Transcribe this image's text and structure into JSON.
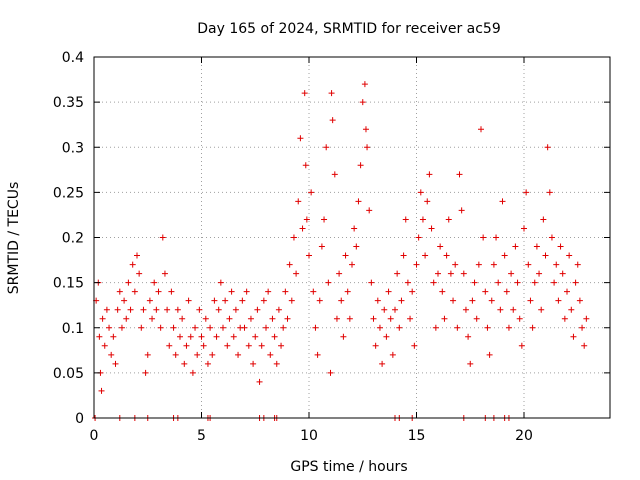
{
  "chart_data": {
    "type": "scatter",
    "title": "Day 165 of 2024, SRMTID for receiver ac59",
    "xlabel": "GPS time / hours",
    "ylabel": "SRMTID / TECUs",
    "xlim": [
      0,
      24
    ],
    "ylim": [
      0,
      0.4
    ],
    "x_ticks": [
      0,
      5,
      10,
      15,
      20
    ],
    "x_tick_labels": [
      "0",
      "5",
      "10",
      "15",
      "20"
    ],
    "y_ticks": [
      0,
      0.05,
      0.1,
      0.15,
      0.2,
      0.25,
      0.3,
      0.35,
      0.4
    ],
    "y_tick_labels": [
      "0",
      "0.05",
      "0.1",
      "0.15",
      "0.2",
      "0.25",
      "0.3",
      "0.35",
      "0.4"
    ],
    "grid": true,
    "marker": "+",
    "series_color": "#e00000",
    "series": [
      {
        "name": "SRMTID",
        "points": [
          [
            0.1,
            0.13
          ],
          [
            0.2,
            0.15
          ],
          [
            0.25,
            0.09
          ],
          [
            0.3,
            0.05
          ],
          [
            0.35,
            0.03
          ],
          [
            0.4,
            0.11
          ],
          [
            0.5,
            0.08
          ],
          [
            0.6,
            0.12
          ],
          [
            0.7,
            0.1
          ],
          [
            0.8,
            0.07
          ],
          [
            0.9,
            0.09
          ],
          [
            1.0,
            0.06
          ],
          [
            1.1,
            0.12
          ],
          [
            1.2,
            0.14
          ],
          [
            1.3,
            0.1
          ],
          [
            1.4,
            0.13
          ],
          [
            1.5,
            0.11
          ],
          [
            1.6,
            0.15
          ],
          [
            1.7,
            0.12
          ],
          [
            1.8,
            0.17
          ],
          [
            1.9,
            0.14
          ],
          [
            2.0,
            0.18
          ],
          [
            2.1,
            0.16
          ],
          [
            2.2,
            0.1
          ],
          [
            2.3,
            0.12
          ],
          [
            2.4,
            0.05
          ],
          [
            2.5,
            0.07
          ],
          [
            2.6,
            0.13
          ],
          [
            2.7,
            0.11
          ],
          [
            2.8,
            0.15
          ],
          [
            2.9,
            0.12
          ],
          [
            3.0,
            0.14
          ],
          [
            3.1,
            0.1
          ],
          [
            3.2,
            0.2
          ],
          [
            3.3,
            0.16
          ],
          [
            3.4,
            0.12
          ],
          [
            3.5,
            0.08
          ],
          [
            3.6,
            0.14
          ],
          [
            3.7,
            0.1
          ],
          [
            3.8,
            0.07
          ],
          [
            3.9,
            0.12
          ],
          [
            4.0,
            0.09
          ],
          [
            4.1,
            0.11
          ],
          [
            4.2,
            0.06
          ],
          [
            4.3,
            0.08
          ],
          [
            4.4,
            0.13
          ],
          [
            4.5,
            0.09
          ],
          [
            4.6,
            0.05
          ],
          [
            4.7,
            0.1
          ],
          [
            4.8,
            0.07
          ],
          [
            4.9,
            0.12
          ],
          [
            5.0,
            0.09
          ],
          [
            5.1,
            0.08
          ],
          [
            5.2,
            0.11
          ],
          [
            5.3,
            0.06
          ],
          [
            5.4,
            0.1
          ],
          [
            5.5,
            0.07
          ],
          [
            5.6,
            0.13
          ],
          [
            5.7,
            0.09
          ],
          [
            5.8,
            0.12
          ],
          [
            5.9,
            0.15
          ],
          [
            6.0,
            0.1
          ],
          [
            6.1,
            0.13
          ],
          [
            6.2,
            0.08
          ],
          [
            6.3,
            0.11
          ],
          [
            6.4,
            0.14
          ],
          [
            6.5,
            0.09
          ],
          [
            6.6,
            0.12
          ],
          [
            6.7,
            0.07
          ],
          [
            6.8,
            0.1
          ],
          [
            6.9,
            0.13
          ],
          [
            7.0,
            0.1
          ],
          [
            7.1,
            0.14
          ],
          [
            7.2,
            0.08
          ],
          [
            7.3,
            0.11
          ],
          [
            7.4,
            0.06
          ],
          [
            7.5,
            0.09
          ],
          [
            7.6,
            0.12
          ],
          [
            7.7,
            0.04
          ],
          [
            7.8,
            0.08
          ],
          [
            7.9,
            0.13
          ],
          [
            8.0,
            0.1
          ],
          [
            8.1,
            0.14
          ],
          [
            8.2,
            0.07
          ],
          [
            8.3,
            0.11
          ],
          [
            8.4,
            0.09
          ],
          [
            8.5,
            0.06
          ],
          [
            8.6,
            0.12
          ],
          [
            8.7,
            0.08
          ],
          [
            8.8,
            0.1
          ],
          [
            8.9,
            0.14
          ],
          [
            9.0,
            0.11
          ],
          [
            9.1,
            0.17
          ],
          [
            9.2,
            0.13
          ],
          [
            9.3,
            0.2
          ],
          [
            9.4,
            0.16
          ],
          [
            9.5,
            0.24
          ],
          [
            9.6,
            0.31
          ],
          [
            9.7,
            0.21
          ],
          [
            9.8,
            0.36
          ],
          [
            9.85,
            0.28
          ],
          [
            9.9,
            0.22
          ],
          [
            10.0,
            0.18
          ],
          [
            10.1,
            0.25
          ],
          [
            10.2,
            0.14
          ],
          [
            10.3,
            0.1
          ],
          [
            10.4,
            0.07
          ],
          [
            10.5,
            0.13
          ],
          [
            10.6,
            0.19
          ],
          [
            10.7,
            0.22
          ],
          [
            10.8,
            0.3
          ],
          [
            10.9,
            0.15
          ],
          [
            11.0,
            0.05
          ],
          [
            11.05,
            0.36
          ],
          [
            11.1,
            0.33
          ],
          [
            11.2,
            0.27
          ],
          [
            11.3,
            0.11
          ],
          [
            11.4,
            0.16
          ],
          [
            11.5,
            0.13
          ],
          [
            11.6,
            0.09
          ],
          [
            11.7,
            0.18
          ],
          [
            11.8,
            0.14
          ],
          [
            11.9,
            0.11
          ],
          [
            12.0,
            0.17
          ],
          [
            12.1,
            0.21
          ],
          [
            12.2,
            0.19
          ],
          [
            12.3,
            0.24
          ],
          [
            12.4,
            0.28
          ],
          [
            12.5,
            0.35
          ],
          [
            12.6,
            0.37
          ],
          [
            12.65,
            0.32
          ],
          [
            12.7,
            0.3
          ],
          [
            12.8,
            0.23
          ],
          [
            12.9,
            0.15
          ],
          [
            13.0,
            0.11
          ],
          [
            13.1,
            0.08
          ],
          [
            13.2,
            0.13
          ],
          [
            13.3,
            0.1
          ],
          [
            13.4,
            0.06
          ],
          [
            13.5,
            0.12
          ],
          [
            13.6,
            0.09
          ],
          [
            13.7,
            0.14
          ],
          [
            13.8,
            0.11
          ],
          [
            13.9,
            0.07
          ],
          [
            14.0,
            0.12
          ],
          [
            14.1,
            0.16
          ],
          [
            14.2,
            0.1
          ],
          [
            14.3,
            0.13
          ],
          [
            14.4,
            0.18
          ],
          [
            14.5,
            0.22
          ],
          [
            14.6,
            0.15
          ],
          [
            14.7,
            0.11
          ],
          [
            14.8,
            0.14
          ],
          [
            14.9,
            0.08
          ],
          [
            15.0,
            0.17
          ],
          [
            15.1,
            0.2
          ],
          [
            15.2,
            0.25
          ],
          [
            15.3,
            0.22
          ],
          [
            15.4,
            0.18
          ],
          [
            15.5,
            0.24
          ],
          [
            15.6,
            0.27
          ],
          [
            15.7,
            0.21
          ],
          [
            15.8,
            0.15
          ],
          [
            15.9,
            0.1
          ],
          [
            16.0,
            0.16
          ],
          [
            16.1,
            0.19
          ],
          [
            16.2,
            0.14
          ],
          [
            16.3,
            0.11
          ],
          [
            16.4,
            0.18
          ],
          [
            16.5,
            0.22
          ],
          [
            16.6,
            0.16
          ],
          [
            16.7,
            0.13
          ],
          [
            16.8,
            0.17
          ],
          [
            16.9,
            0.1
          ],
          [
            17.0,
            0.27
          ],
          [
            17.1,
            0.23
          ],
          [
            17.2,
            0.16
          ],
          [
            17.3,
            0.12
          ],
          [
            17.4,
            0.09
          ],
          [
            17.5,
            0.06
          ],
          [
            17.6,
            0.13
          ],
          [
            17.7,
            0.15
          ],
          [
            17.8,
            0.11
          ],
          [
            17.9,
            0.17
          ],
          [
            18.0,
            0.32
          ],
          [
            18.1,
            0.2
          ],
          [
            18.2,
            0.14
          ],
          [
            18.3,
            0.1
          ],
          [
            18.4,
            0.07
          ],
          [
            18.5,
            0.13
          ],
          [
            18.6,
            0.17
          ],
          [
            18.7,
            0.2
          ],
          [
            18.8,
            0.15
          ],
          [
            18.9,
            0.12
          ],
          [
            19.0,
            0.24
          ],
          [
            19.1,
            0.18
          ],
          [
            19.2,
            0.14
          ],
          [
            19.3,
            0.1
          ],
          [
            19.4,
            0.16
          ],
          [
            19.5,
            0.12
          ],
          [
            19.6,
            0.19
          ],
          [
            19.7,
            0.15
          ],
          [
            19.8,
            0.11
          ],
          [
            19.9,
            0.08
          ],
          [
            20.0,
            0.21
          ],
          [
            20.1,
            0.25
          ],
          [
            20.2,
            0.17
          ],
          [
            20.3,
            0.13
          ],
          [
            20.4,
            0.1
          ],
          [
            20.5,
            0.15
          ],
          [
            20.6,
            0.19
          ],
          [
            20.7,
            0.16
          ],
          [
            20.8,
            0.12
          ],
          [
            20.9,
            0.22
          ],
          [
            21.0,
            0.18
          ],
          [
            21.1,
            0.3
          ],
          [
            21.2,
            0.25
          ],
          [
            21.3,
            0.2
          ],
          [
            21.4,
            0.15
          ],
          [
            21.5,
            0.17
          ],
          [
            21.6,
            0.13
          ],
          [
            21.7,
            0.19
          ],
          [
            21.8,
            0.16
          ],
          [
            21.9,
            0.11
          ],
          [
            22.0,
            0.14
          ],
          [
            22.1,
            0.18
          ],
          [
            22.2,
            0.12
          ],
          [
            22.3,
            0.09
          ],
          [
            22.4,
            0.15
          ],
          [
            22.5,
            0.17
          ],
          [
            22.6,
            0.13
          ],
          [
            22.7,
            0.1
          ],
          [
            22.8,
            0.08
          ],
          [
            22.9,
            0.11
          ],
          [
            0.05,
            0
          ],
          [
            1.2,
            0
          ],
          [
            1.9,
            0
          ],
          [
            2.5,
            0
          ],
          [
            3.7,
            0
          ],
          [
            3.9,
            0
          ],
          [
            5.3,
            0
          ],
          [
            5.4,
            0
          ],
          [
            7.7,
            0
          ],
          [
            7.9,
            0
          ],
          [
            8.4,
            0
          ],
          [
            8.5,
            0
          ],
          [
            14.0,
            0
          ],
          [
            14.2,
            0
          ],
          [
            14.8,
            0
          ],
          [
            17.2,
            0
          ],
          [
            18.2,
            0
          ],
          [
            18.6,
            0
          ],
          [
            19.1,
            0
          ],
          [
            19.3,
            0
          ]
        ]
      }
    ]
  }
}
